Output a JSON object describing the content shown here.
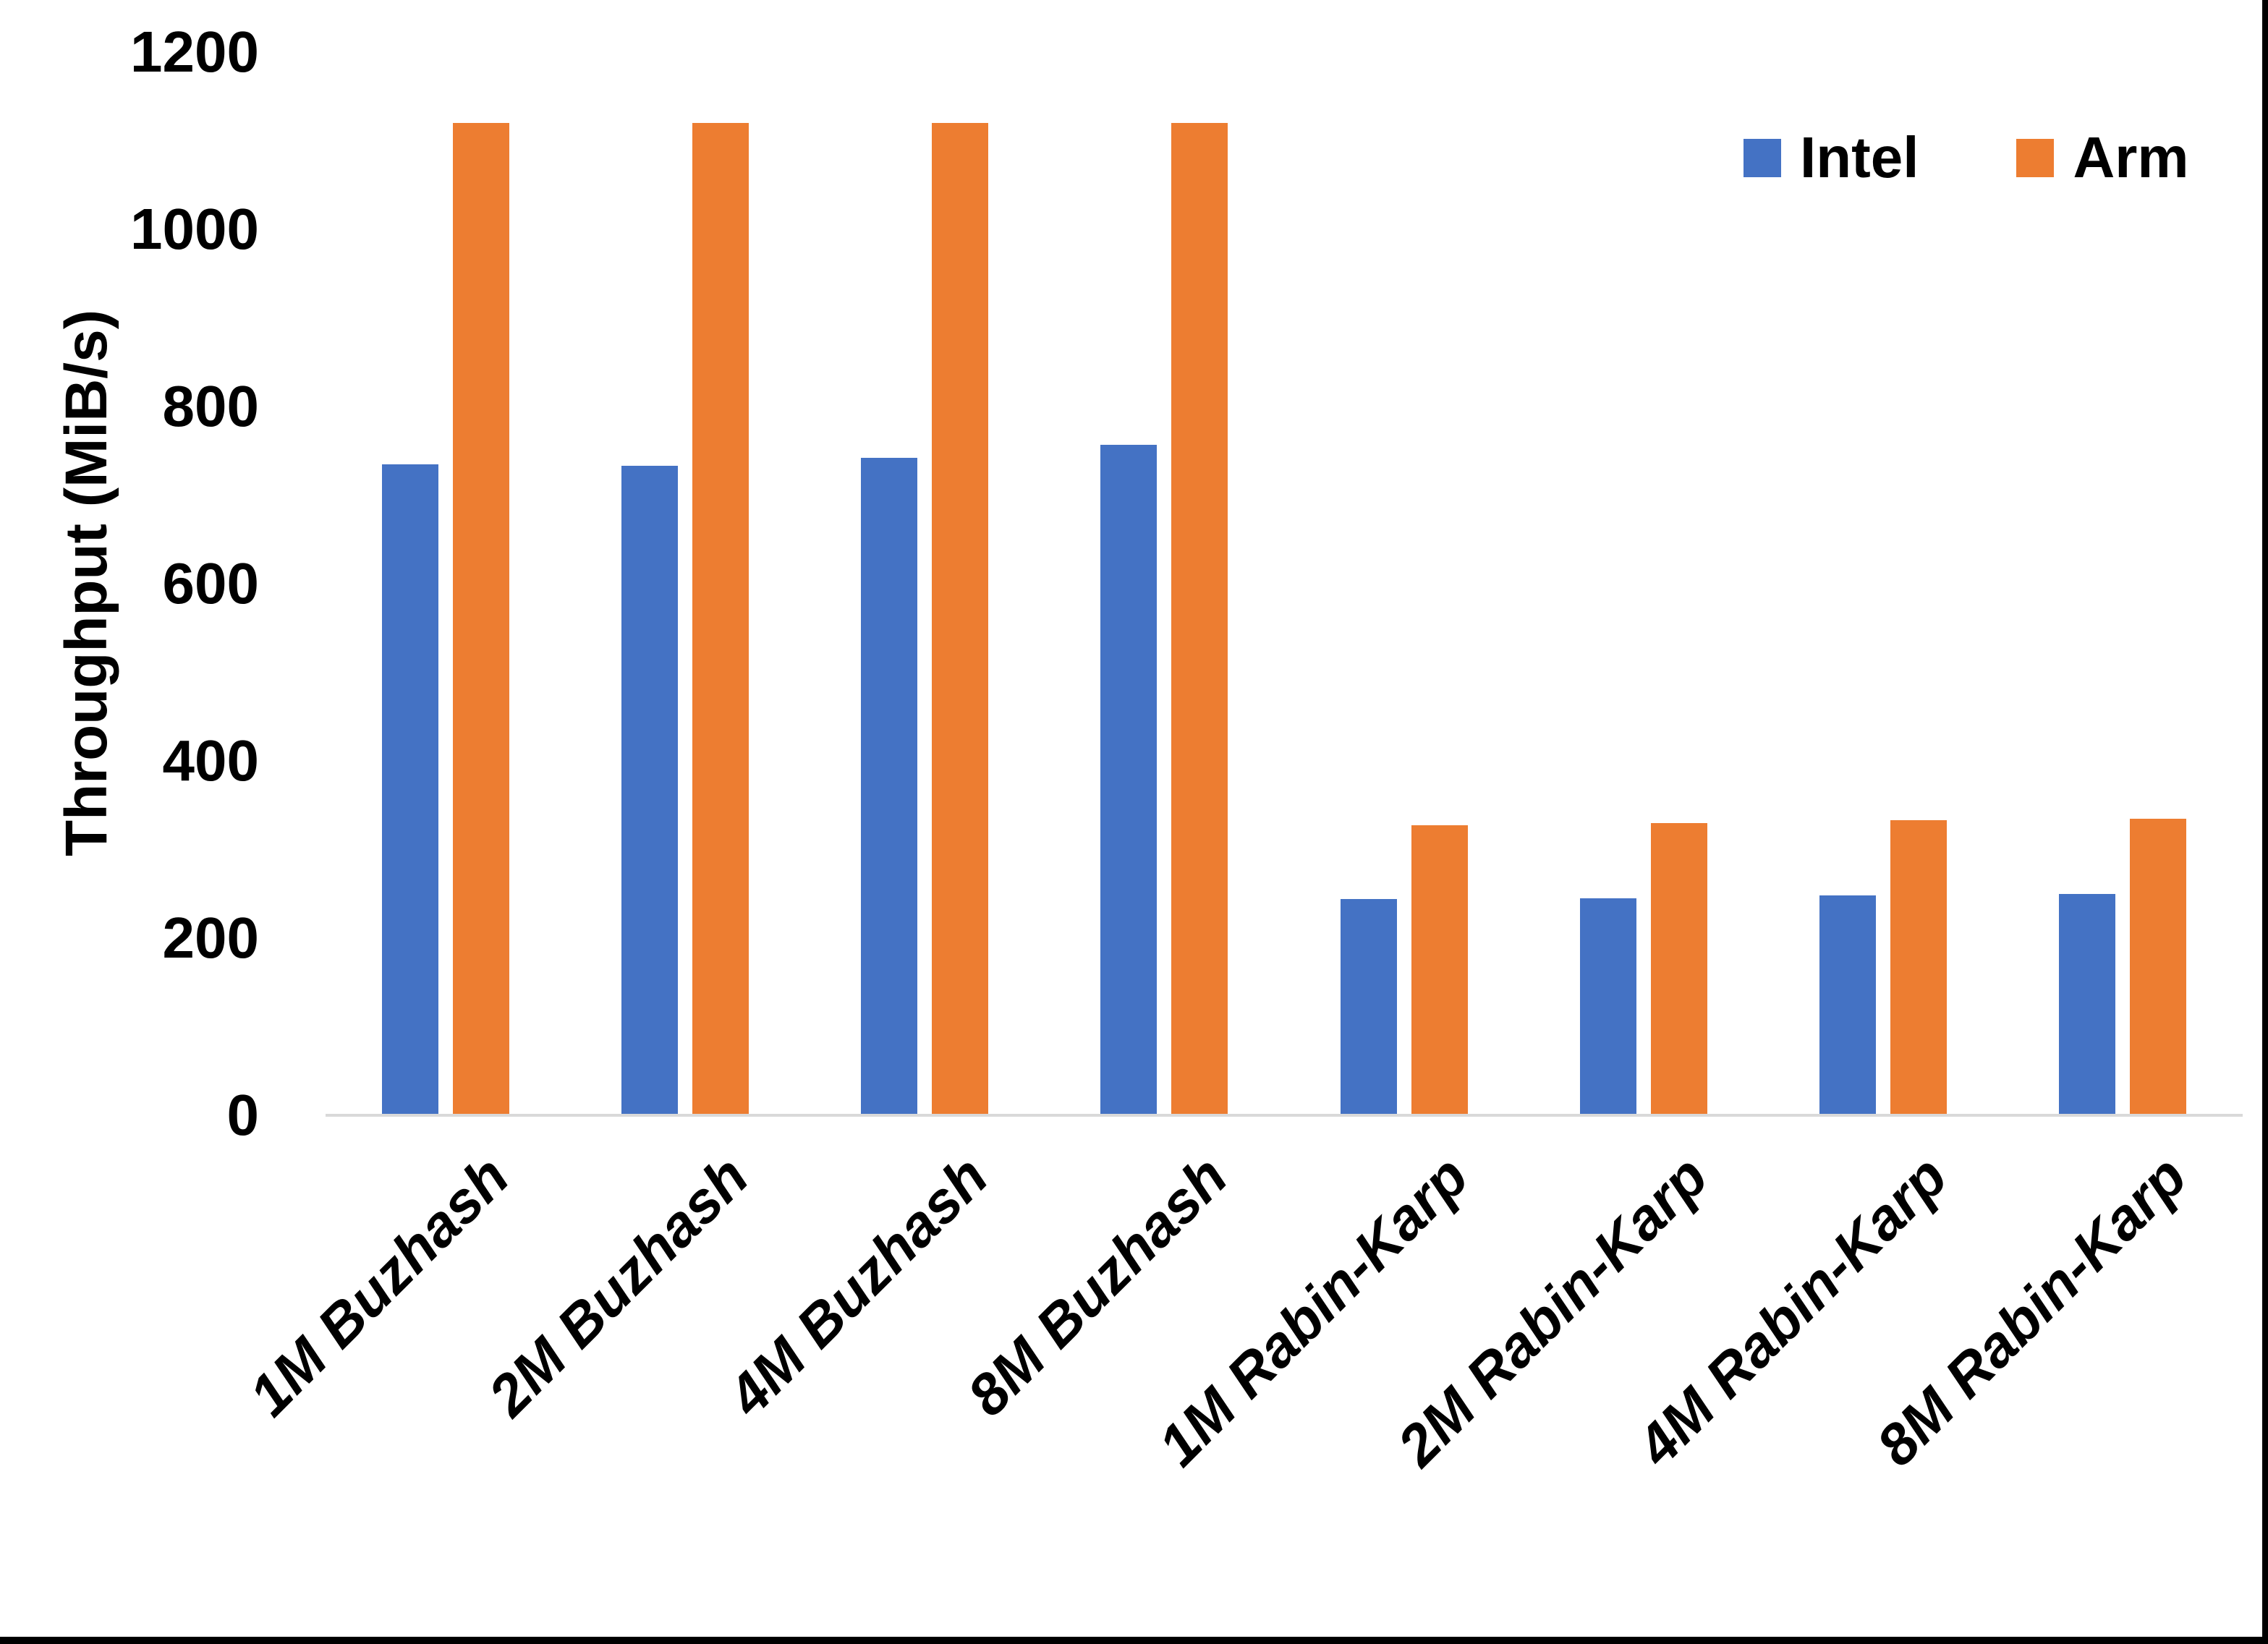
{
  "chart_data": {
    "type": "bar",
    "title": "",
    "xlabel": "",
    "ylabel": "Throughput (MiB/s)",
    "categories": [
      "1M Buzhash",
      "2M Buzhash",
      "4M Buzhash",
      "8M Buzhash",
      "1M Rabin-Karp",
      "2M Rabin-Karp",
      "4M Rabin-Karp",
      "8M Rabin-Karp"
    ],
    "series": [
      {
        "name": "Intel",
        "color": "#4472C4",
        "values": [
          735,
          733,
          742,
          757,
          244,
          245,
          248,
          250
        ]
      },
      {
        "name": "Arm",
        "color": "#ED7D31",
        "values": [
          1120,
          1120,
          1120,
          1120,
          327,
          330,
          333,
          335
        ]
      }
    ],
    "ylim": [
      0,
      1200
    ],
    "yticks": [
      0,
      200,
      400,
      600,
      800,
      1000,
      1200
    ],
    "grid": false,
    "legend_position": "top-right",
    "category_label_rotation_deg": -45,
    "category_label_style": "italic"
  },
  "colors": {
    "background": "#FFFFFF",
    "axis_line": "#D9D9D9",
    "text": "#000000",
    "frame": "#000000"
  }
}
